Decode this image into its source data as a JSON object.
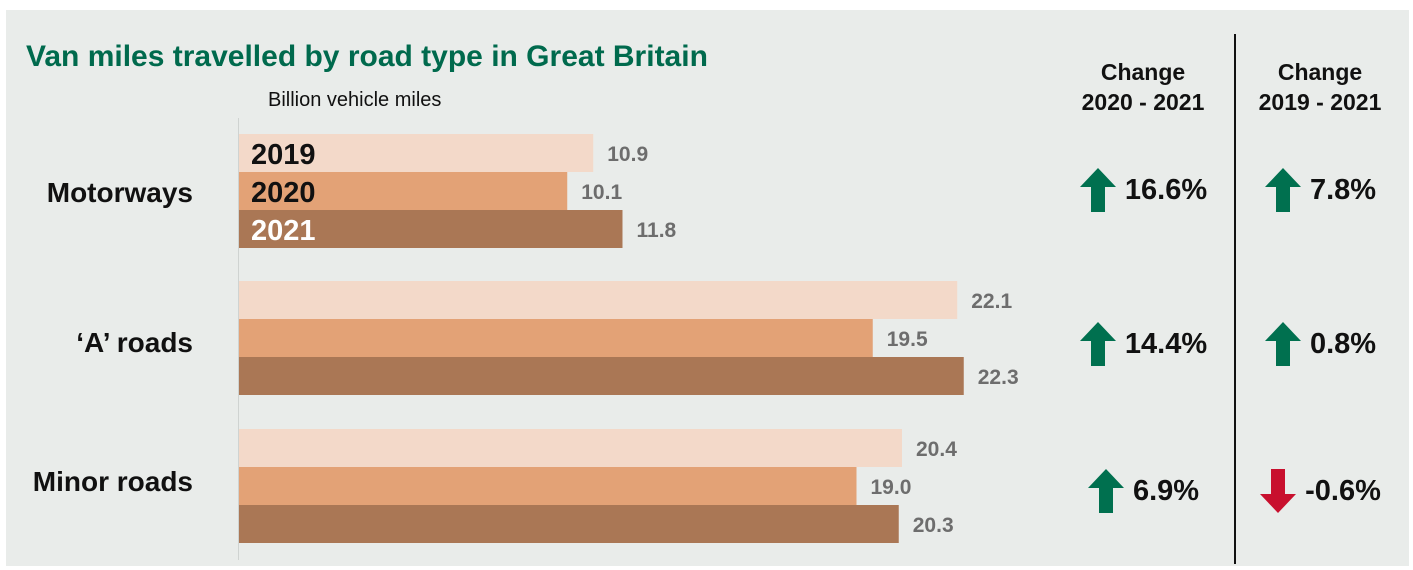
{
  "colors": {
    "panel_bg": "#e9ecea",
    "title": "#006a4d",
    "bar_2019": "#f3d9c9",
    "bar_2020": "#e3a276",
    "bar_2021": "#aa7755",
    "value_label": "#6d6d6d",
    "arrow_up": "#00704f",
    "arrow_down": "#c8102e"
  },
  "chart_data": {
    "type": "bar",
    "orientation": "horizontal",
    "title": "Van miles travelled by road type in Great Britain",
    "units_label": "Billion vehicle miles",
    "categories": [
      "Motorways",
      "‘A’ roads",
      "Minor roads"
    ],
    "series": [
      {
        "name": "2019",
        "values": [
          10.9,
          22.1,
          20.4
        ],
        "labels": [
          "10.9",
          "22.1",
          "20.4"
        ]
      },
      {
        "name": "2020",
        "values": [
          10.1,
          19.5,
          19.0
        ],
        "labels": [
          "10.1",
          "19.5",
          "19.0"
        ]
      },
      {
        "name": "2021",
        "values": [
          11.8,
          22.3,
          20.3
        ],
        "labels": [
          "11.8",
          "22.3",
          "20.3"
        ]
      }
    ],
    "xlim": [
      0,
      22.3
    ],
    "grid": false,
    "legend": "inside first group of bars"
  },
  "change_table": {
    "columns": [
      {
        "header_line1": "Change",
        "header_line2": "2020 - 2021"
      },
      {
        "header_line1": "Change",
        "header_line2": "2019 - 2021"
      }
    ],
    "rows": [
      {
        "col1": {
          "value": "16.6%",
          "direction": "up"
        },
        "col2": {
          "value": "7.8%",
          "direction": "up"
        }
      },
      {
        "col1": {
          "value": "14.4%",
          "direction": "up"
        },
        "col2": {
          "value": "0.8%",
          "direction": "up"
        }
      },
      {
        "col1": {
          "value": "6.9%",
          "direction": "up"
        },
        "col2": {
          "value": "-0.6%",
          "direction": "down"
        }
      }
    ]
  }
}
